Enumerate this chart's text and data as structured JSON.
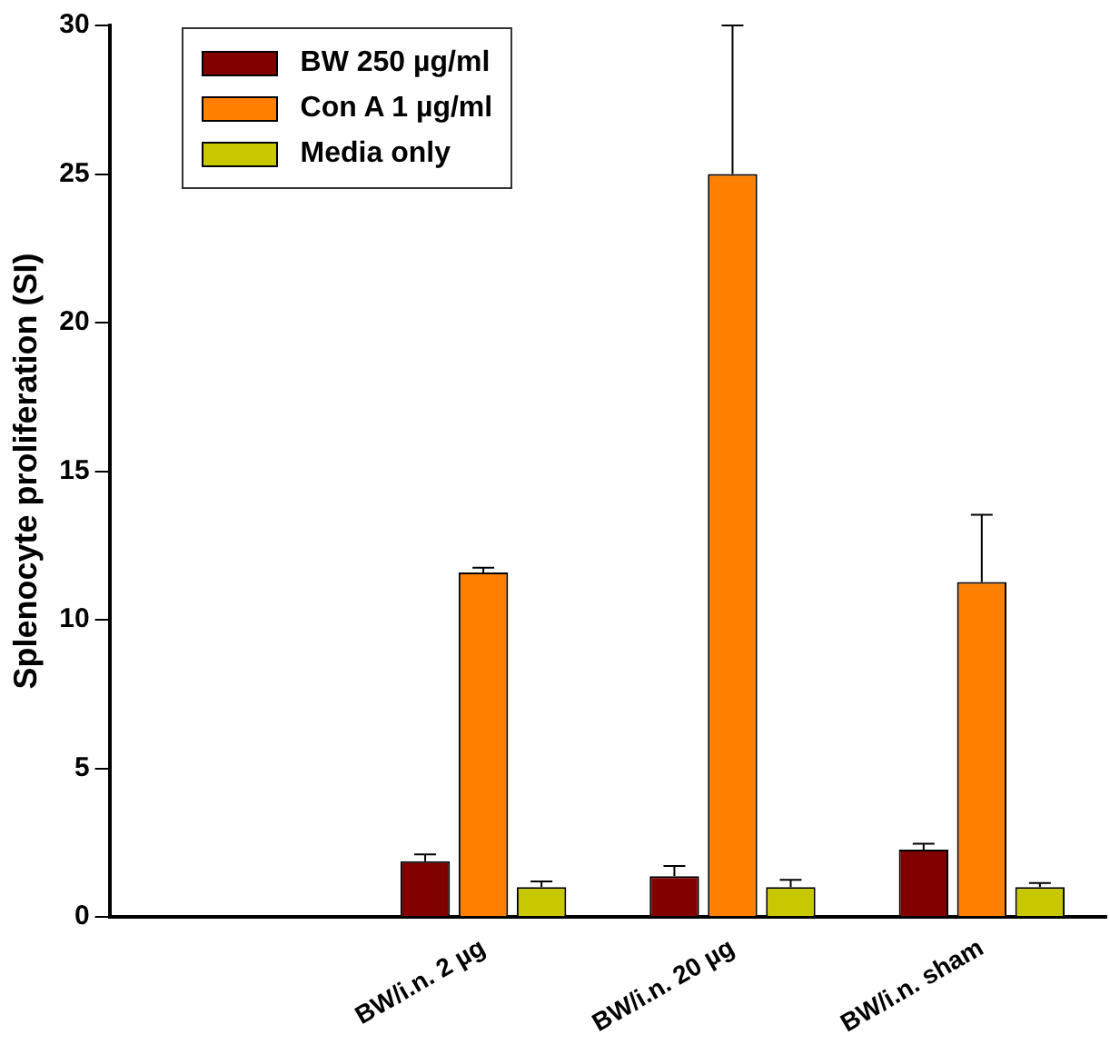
{
  "chart_data": {
    "type": "bar",
    "ylabel": "Splenocyte proliferation (SI)",
    "categories": [
      null,
      "BW/i.n. 2 µg",
      "BW/i.n. 20 µg",
      "BW/i.n. sham"
    ],
    "series": [
      {
        "name": "BW 250 µg/ml",
        "color": "#800000",
        "values": [
          null,
          1.87,
          1.37,
          2.26
        ],
        "errors": [
          null,
          [
            1.87,
            2.1
          ],
          [
            1.37,
            1.71
          ],
          [
            2.26,
            2.46
          ]
        ]
      },
      {
        "name": "Con A 1 µg/ml",
        "color": "#ff8000",
        "values": [
          null,
          11.59,
          25.0,
          11.27
        ],
        "errors": [
          null,
          [
            11.59,
            11.75
          ],
          [
            25.0,
            30.0
          ],
          [
            11.27,
            13.53
          ]
        ]
      },
      {
        "name": "Media only",
        "color": "#c8c800",
        "values": [
          null,
          1.0,
          1.0,
          1.0
        ],
        "errors": [
          null,
          [
            1.0,
            1.19
          ],
          [
            1.0,
            1.25
          ],
          [
            1.0,
            1.14
          ]
        ]
      }
    ],
    "ylim": [
      0,
      30
    ],
    "yticks": [
      0,
      5,
      10,
      15,
      20,
      25,
      30
    ],
    "grid": false,
    "legend": "top left"
  }
}
